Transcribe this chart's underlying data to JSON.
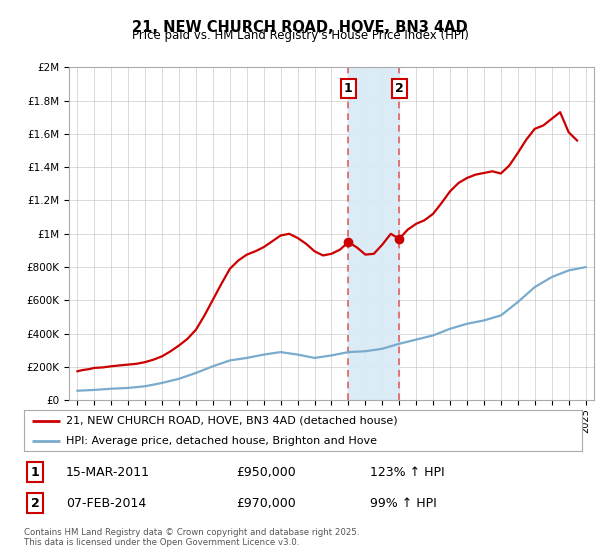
{
  "title": "21, NEW CHURCH ROAD, HOVE, BN3 4AD",
  "subtitle": "Price paid vs. HM Land Registry's House Price Index (HPI)",
  "footer": "Contains HM Land Registry data © Crown copyright and database right 2025.\nThis data is licensed under the Open Government Licence v3.0.",
  "legend_line1": "21, NEW CHURCH ROAD, HOVE, BN3 4AD (detached house)",
  "legend_line2": "HPI: Average price, detached house, Brighton and Hove",
  "transaction1_date": "15-MAR-2011",
  "transaction1_price": "£950,000",
  "transaction1_hpi": "123% ↑ HPI",
  "transaction2_date": "07-FEB-2014",
  "transaction2_price": "£970,000",
  "transaction2_hpi": "99% ↑ HPI",
  "red_color": "#cc0000",
  "blue_color": "#7aabcc",
  "shade_color": "#d8eaf7",
  "dashed_color": "#e06060",
  "background_color": "#ffffff",
  "grid_color": "#cccccc",
  "ylim": [
    0,
    2000000
  ],
  "yticks": [
    0,
    200000,
    400000,
    600000,
    800000,
    1000000,
    1200000,
    1400000,
    1600000,
    1800000,
    2000000
  ],
  "hpi_years": [
    1995,
    1996,
    1997,
    1998,
    1999,
    2000,
    2001,
    2002,
    2003,
    2004,
    2005,
    2006,
    2007,
    2008,
    2009,
    2010,
    2011,
    2012,
    2013,
    2014,
    2015,
    2016,
    2017,
    2018,
    2019,
    2020,
    2021,
    2022,
    2023,
    2024,
    2025
  ],
  "hpi_values": [
    58000,
    63000,
    70000,
    75000,
    85000,
    105000,
    130000,
    165000,
    205000,
    240000,
    255000,
    275000,
    290000,
    275000,
    255000,
    270000,
    290000,
    295000,
    310000,
    340000,
    365000,
    390000,
    430000,
    460000,
    480000,
    510000,
    590000,
    680000,
    740000,
    780000,
    800000
  ],
  "house_years": [
    1995.0,
    1995.3,
    1995.7,
    1996.0,
    1996.5,
    1997.0,
    1997.5,
    1998.0,
    1998.5,
    1999.0,
    1999.5,
    2000.0,
    2000.5,
    2001.0,
    2001.5,
    2002.0,
    2002.5,
    2003.0,
    2003.5,
    2004.0,
    2004.5,
    2005.0,
    2005.5,
    2006.0,
    2006.5,
    2007.0,
    2007.5,
    2008.0,
    2008.5,
    2009.0,
    2009.5,
    2010.0,
    2010.5,
    2011.0,
    2011.5,
    2012.0,
    2012.5,
    2013.0,
    2013.5,
    2014.0,
    2014.5,
    2015.0,
    2015.5,
    2016.0,
    2016.5,
    2017.0,
    2017.5,
    2018.0,
    2018.5,
    2019.0,
    2019.5,
    2020.0,
    2020.5,
    2021.0,
    2021.5,
    2022.0,
    2022.5,
    2023.0,
    2023.5,
    2024.0,
    2024.5
  ],
  "house_values": [
    175000,
    182000,
    188000,
    195000,
    198000,
    205000,
    210000,
    215000,
    220000,
    230000,
    245000,
    265000,
    295000,
    330000,
    370000,
    425000,
    510000,
    605000,
    700000,
    790000,
    840000,
    875000,
    895000,
    920000,
    955000,
    990000,
    1000000,
    975000,
    940000,
    895000,
    870000,
    880000,
    905000,
    950000,
    918000,
    875000,
    880000,
    935000,
    1000000,
    970000,
    1025000,
    1060000,
    1082000,
    1120000,
    1185000,
    1255000,
    1305000,
    1335000,
    1355000,
    1365000,
    1375000,
    1362000,
    1410000,
    1485000,
    1565000,
    1630000,
    1650000,
    1690000,
    1730000,
    1610000,
    1560000
  ],
  "transaction1_x": 2011.0,
  "transaction1_y": 950000,
  "transaction2_x": 2014.0,
  "transaction2_y": 970000,
  "shade_x_start": 2011.0,
  "shade_x_end": 2014.0,
  "xlim_start": 1994.5,
  "xlim_end": 2025.5
}
